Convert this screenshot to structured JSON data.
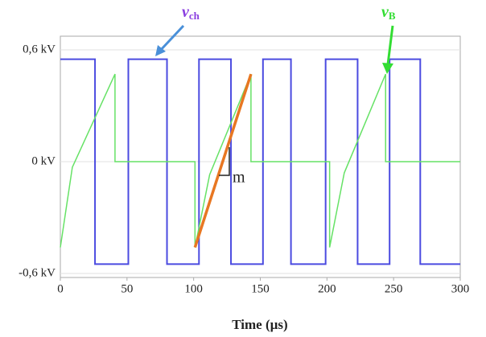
{
  "chart_data": {
    "type": "line",
    "x_label": "Time (µs)",
    "xlim": [
      0,
      300
    ],
    "xticks": [
      0,
      50,
      100,
      150,
      200,
      250,
      300
    ],
    "ylim": [
      -0.6,
      0.6
    ],
    "yticks": [
      {
        "value": -0.6,
        "label": "-0,6 kV"
      },
      {
        "value": 0,
        "label": "0 kV"
      },
      {
        "value": 0.6,
        "label": "0,6 kV"
      }
    ],
    "grid": true,
    "series": [
      {
        "color": "#4b4be0",
        "width": 2,
        "x": [
          0,
          26,
          26,
          51,
          51,
          80,
          80,
          104,
          104,
          128,
          128,
          152,
          152,
          173,
          173,
          199,
          199,
          223,
          223,
          247,
          247,
          270,
          270,
          300
        ],
        "values": [
          0.55,
          0.55,
          -0.55,
          -0.55,
          0.55,
          0.55,
          -0.55,
          -0.55,
          0.55,
          0.55,
          -0.55,
          -0.55,
          0.55,
          0.55,
          -0.55,
          -0.55,
          0.55,
          0.55,
          -0.55,
          -0.55,
          0.55,
          0.55,
          -0.55,
          -0.55
        ]
      },
      {
        "color": "#66e266",
        "width": 1.5,
        "x": [
          0,
          9,
          41,
          41,
          101,
          101,
          112,
          143,
          143,
          202,
          202,
          213,
          244,
          244,
          300
        ],
        "values": [
          -0.46,
          -0.03,
          0.47,
          0,
          0,
          -0.46,
          -0.07,
          0.47,
          0,
          0,
          -0.46,
          -0.06,
          0.47,
          0,
          0
        ]
      },
      {
        "color": "#e87722",
        "width": 3.5,
        "x": [
          101,
          143
        ],
        "values": [
          -0.46,
          0.47
        ]
      }
    ],
    "annotations": [
      {
        "text": "v",
        "sub": "ch",
        "color": "#8a3ee0"
      },
      {
        "text": "v",
        "sub": "B",
        "color": "#33dd33"
      },
      {
        "text": "m",
        "color": "#222"
      }
    ]
  }
}
